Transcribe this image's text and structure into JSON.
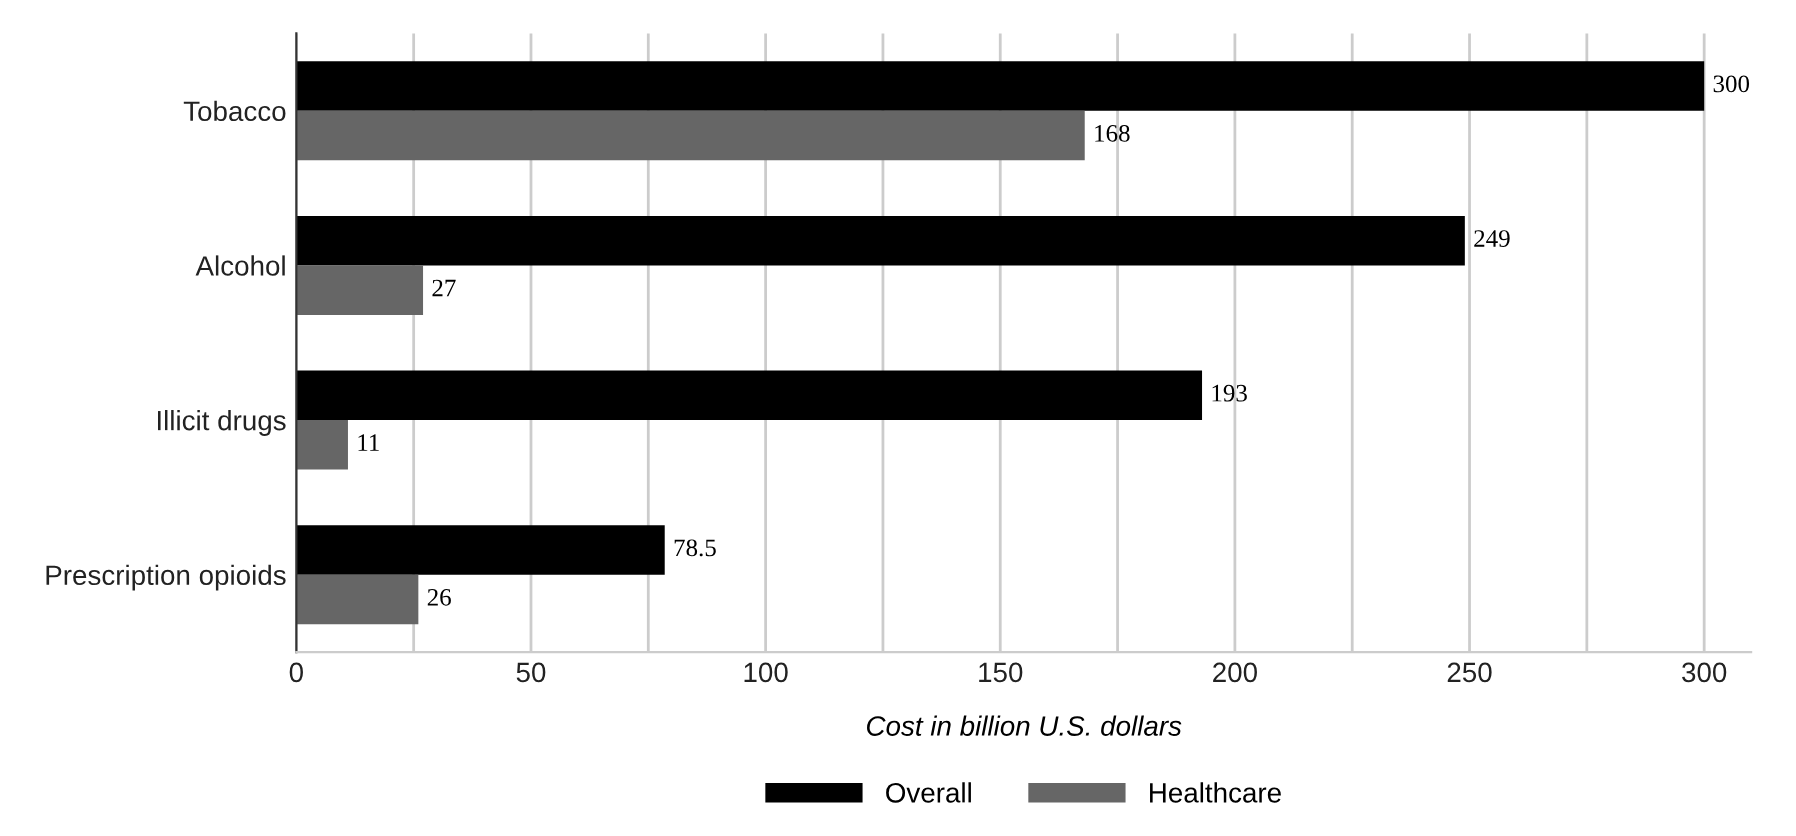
{
  "chart_data": {
    "type": "bar",
    "orientation": "horizontal",
    "categories": [
      "Tobacco",
      "Alcohol",
      "Illicit drugs",
      "Prescription opioids"
    ],
    "series": [
      {
        "name": "Overall",
        "color": "#000000",
        "values": [
          300,
          249,
          193,
          78.5
        ]
      },
      {
        "name": "Healthcare",
        "color": "#666666",
        "values": [
          168,
          27,
          11,
          26
        ]
      }
    ],
    "xlabel": "Cost in billion U.S. dollars",
    "xlim": [
      0,
      310
    ],
    "xticks": [
      0,
      {
        "value": 25,
        "label": null
      },
      50,
      {
        "value": 75,
        "label": null
      },
      100,
      {
        "value": 125,
        "label": null
      },
      150,
      {
        "value": 175,
        "label": null
      },
      200,
      {
        "value": 225,
        "label": null
      },
      250,
      {
        "value": 275,
        "label": null
      },
      300
    ],
    "grid": "x",
    "legend": "bottom",
    "data_labels": true
  }
}
